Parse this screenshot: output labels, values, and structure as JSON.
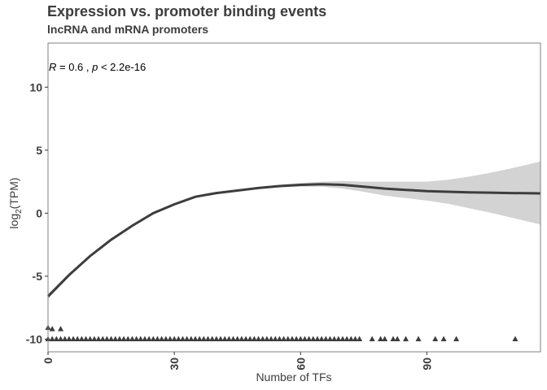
{
  "title": "Expression vs. promoter binding events",
  "subtitle": "lncRNA and mRNA promoters",
  "annotation": {
    "r_label": "R",
    "r_value": " = 0.6 , ",
    "p_label": "p",
    "p_value": " < 2.2e-16"
  },
  "colors": {
    "line": "#3d3d3d",
    "ribbon": "#d3d3d3",
    "points": "#3d3d3d",
    "panel_border": "#808080"
  },
  "chart_data": {
    "type": "scatter",
    "title": "Expression vs. promoter binding events",
    "subtitle": "lncRNA and mRNA promoters",
    "xlabel": "Number of TFs",
    "ylabel": "log2(TPM)",
    "xlim": [
      0,
      117
    ],
    "ylim": [
      -11,
      13.5
    ],
    "x_ticks": [
      0,
      30,
      60,
      90
    ],
    "y_ticks": [
      -10,
      -5,
      0,
      5,
      10
    ],
    "grid": false,
    "points": {
      "marker": "triangle",
      "x": [
        0,
        1,
        2,
        3,
        4,
        5,
        6,
        7,
        8,
        9,
        10,
        11,
        12,
        13,
        14,
        15,
        16,
        17,
        18,
        19,
        20,
        21,
        22,
        23,
        24,
        25,
        26,
        27,
        28,
        29,
        30,
        31,
        32,
        33,
        34,
        35,
        36,
        37,
        38,
        39,
        40,
        41,
        42,
        43,
        44,
        45,
        46,
        47,
        48,
        49,
        50,
        51,
        52,
        53,
        54,
        55,
        56,
        57,
        58,
        59,
        60,
        61,
        62,
        63,
        64,
        65,
        66,
        67,
        68,
        69,
        70,
        71,
        72,
        73,
        74,
        77,
        79,
        80,
        82,
        83,
        85,
        88,
        92,
        94,
        97,
        111,
        0,
        1,
        3
      ],
      "y": [
        -10,
        -10,
        -10,
        -10,
        -10,
        -10,
        -10,
        -10,
        -10,
        -10,
        -10,
        -10,
        -10,
        -10,
        -10,
        -10,
        -10,
        -10,
        -10,
        -10,
        -10,
        -10,
        -10,
        -10,
        -10,
        -10,
        -10,
        -10,
        -10,
        -10,
        -10,
        -10,
        -10,
        -10,
        -10,
        -10,
        -10,
        -10,
        -10,
        -10,
        -10,
        -10,
        -10,
        -10,
        -10,
        -10,
        -10,
        -10,
        -10,
        -10,
        -10,
        -10,
        -10,
        -10,
        -10,
        -10,
        -10,
        -10,
        -10,
        -10,
        -10,
        -10,
        -10,
        -10,
        -10,
        -10,
        -10,
        -10,
        -10,
        -10,
        -10,
        -10,
        -10,
        -10,
        -10,
        -10,
        -10,
        -10,
        -10,
        -10,
        -10,
        -10,
        -10,
        -10,
        -10,
        -10,
        -9.1,
        -9.2,
        -9.2
      ]
    },
    "smooth": {
      "x": [
        0,
        5,
        10,
        15,
        20,
        25,
        30,
        35,
        40,
        45,
        50,
        55,
        60,
        65,
        70,
        75,
        80,
        85,
        90,
        95,
        100,
        105,
        110,
        117
      ],
      "y": [
        -6.6,
        -4.9,
        -3.4,
        -2.1,
        -1.0,
        0.0,
        0.7,
        1.3,
        1.6,
        1.8,
        2.0,
        2.15,
        2.25,
        2.3,
        2.25,
        2.1,
        1.95,
        1.85,
        1.75,
        1.7,
        1.65,
        1.63,
        1.6,
        1.57
      ],
      "ci_lower": [
        -6.8,
        -5.05,
        -3.5,
        -2.2,
        -1.1,
        -0.1,
        0.6,
        1.2,
        1.52,
        1.72,
        1.92,
        2.05,
        2.1,
        2.1,
        1.95,
        1.7,
        1.4,
        1.2,
        1.0,
        0.75,
        0.4,
        0.05,
        -0.35,
        -0.9
      ],
      "ci_upper": [
        -6.4,
        -4.75,
        -3.3,
        -2.0,
        -0.9,
        0.1,
        0.8,
        1.4,
        1.68,
        1.88,
        2.08,
        2.25,
        2.4,
        2.5,
        2.55,
        2.5,
        2.5,
        2.5,
        2.5,
        2.65,
        2.9,
        3.2,
        3.55,
        4.1
      ]
    }
  }
}
